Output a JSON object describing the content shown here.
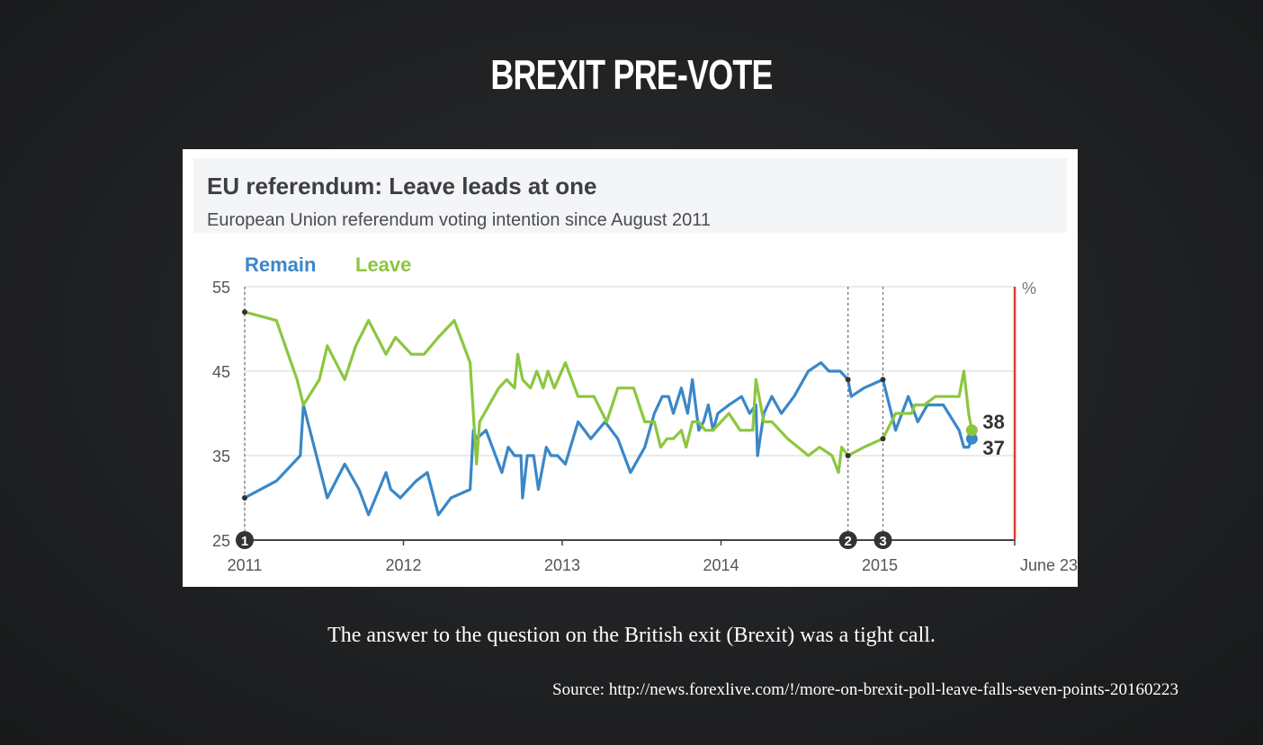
{
  "slide": {
    "title": "BREXIT PRE-VOTE",
    "caption": "The answer to the question on the British exit (Brexit) was a tight call.",
    "source": "Source: http://news.forexlive.com/!/more-on-brexit-poll-leave-falls-seven-points-20160223"
  },
  "chart_data": {
    "type": "line",
    "title": "EU referendum: Leave leads at one",
    "subtitle": "European Union referendum voting intention since August 2011",
    "unit_label": "%",
    "ylim": [
      25,
      55
    ],
    "yticks": [
      25,
      35,
      45,
      55
    ],
    "xlim": [
      2011.0,
      2015.85
    ],
    "xticks": [
      {
        "value": 2011.0,
        "label": "2011"
      },
      {
        "value": 2012.0,
        "label": "2012"
      },
      {
        "value": 2013.0,
        "label": "2013"
      },
      {
        "value": 2014.0,
        "label": "2014"
      },
      {
        "value": 2015.0,
        "label": "2015"
      },
      {
        "value": 2015.85,
        "label": "June 23"
      }
    ],
    "grid": true,
    "legend_position": "top-left",
    "colors": {
      "remain": "#3a87c8",
      "leave": "#8cc63f",
      "marker_line": "#e53935",
      "axis": "#444444"
    },
    "markers": [
      {
        "label": "1",
        "x": 2011.0
      },
      {
        "label": "2",
        "x": 2014.8
      },
      {
        "label": "3",
        "x": 2015.02
      }
    ],
    "series": [
      {
        "name": "Remain",
        "end_label": "37",
        "points": [
          [
            2011.0,
            30
          ],
          [
            2011.2,
            32
          ],
          [
            2011.35,
            35
          ],
          [
            2011.37,
            41
          ],
          [
            2011.52,
            30
          ],
          [
            2011.63,
            34
          ],
          [
            2011.72,
            31
          ],
          [
            2011.78,
            28
          ],
          [
            2011.89,
            33
          ],
          [
            2011.92,
            31
          ],
          [
            2011.98,
            30
          ],
          [
            2012.08,
            32
          ],
          [
            2012.15,
            33
          ],
          [
            2012.22,
            28
          ],
          [
            2012.3,
            30
          ],
          [
            2012.42,
            31
          ],
          [
            2012.44,
            38
          ],
          [
            2012.46,
            37
          ],
          [
            2012.52,
            38
          ],
          [
            2012.62,
            33
          ],
          [
            2012.66,
            36
          ],
          [
            2012.7,
            35
          ],
          [
            2012.74,
            35
          ],
          [
            2012.75,
            30
          ],
          [
            2012.78,
            35
          ],
          [
            2012.82,
            35
          ],
          [
            2012.85,
            31
          ],
          [
            2012.9,
            36
          ],
          [
            2012.93,
            35
          ],
          [
            2012.97,
            35
          ],
          [
            2013.02,
            34
          ],
          [
            2013.1,
            39
          ],
          [
            2013.18,
            37
          ],
          [
            2013.27,
            39
          ],
          [
            2013.35,
            37
          ],
          [
            2013.43,
            33
          ],
          [
            2013.52,
            36
          ],
          [
            2013.58,
            40
          ],
          [
            2013.63,
            42
          ],
          [
            2013.67,
            42
          ],
          [
            2013.7,
            40
          ],
          [
            2013.75,
            43
          ],
          [
            2013.79,
            40
          ],
          [
            2013.82,
            44
          ],
          [
            2013.86,
            38
          ],
          [
            2013.89,
            39
          ],
          [
            2013.92,
            41
          ],
          [
            2013.95,
            38
          ],
          [
            2013.98,
            40
          ],
          [
            2014.05,
            41
          ],
          [
            2014.13,
            42
          ],
          [
            2014.18,
            40
          ],
          [
            2014.22,
            41
          ],
          [
            2014.23,
            35
          ],
          [
            2014.27,
            40
          ],
          [
            2014.32,
            42
          ],
          [
            2014.38,
            40
          ],
          [
            2014.46,
            42
          ],
          [
            2014.55,
            45
          ],
          [
            2014.63,
            46
          ],
          [
            2014.68,
            45
          ],
          [
            2014.75,
            45
          ],
          [
            2014.8,
            44
          ],
          [
            2014.82,
            42
          ],
          [
            2014.9,
            43
          ],
          [
            2015.02,
            44
          ],
          [
            2015.1,
            38
          ],
          [
            2015.18,
            42
          ],
          [
            2015.24,
            39
          ],
          [
            2015.3,
            41
          ],
          [
            2015.4,
            41
          ],
          [
            2015.5,
            38
          ],
          [
            2015.53,
            36
          ],
          [
            2015.56,
            36
          ],
          [
            2015.58,
            37
          ]
        ]
      },
      {
        "name": "Leave",
        "end_label": "38",
        "points": [
          [
            2011.0,
            52
          ],
          [
            2011.2,
            51
          ],
          [
            2011.33,
            44
          ],
          [
            2011.37,
            41
          ],
          [
            2011.47,
            44
          ],
          [
            2011.52,
            48
          ],
          [
            2011.63,
            44
          ],
          [
            2011.7,
            48
          ],
          [
            2011.78,
            51
          ],
          [
            2011.89,
            47
          ],
          [
            2011.95,
            49
          ],
          [
            2012.05,
            47
          ],
          [
            2012.13,
            47
          ],
          [
            2012.22,
            49
          ],
          [
            2012.32,
            51
          ],
          [
            2012.42,
            46
          ],
          [
            2012.44,
            40
          ],
          [
            2012.46,
            34
          ],
          [
            2012.48,
            39
          ],
          [
            2012.6,
            43
          ],
          [
            2012.65,
            44
          ],
          [
            2012.7,
            43
          ],
          [
            2012.72,
            47
          ],
          [
            2012.75,
            44
          ],
          [
            2012.8,
            43
          ],
          [
            2012.84,
            45
          ],
          [
            2012.88,
            43
          ],
          [
            2012.91,
            45
          ],
          [
            2012.95,
            43
          ],
          [
            2013.02,
            46
          ],
          [
            2013.1,
            42
          ],
          [
            2013.2,
            42
          ],
          [
            2013.28,
            39
          ],
          [
            2013.35,
            43
          ],
          [
            2013.45,
            43
          ],
          [
            2013.52,
            39
          ],
          [
            2013.58,
            39
          ],
          [
            2013.62,
            36
          ],
          [
            2013.66,
            37
          ],
          [
            2013.7,
            37
          ],
          [
            2013.75,
            38
          ],
          [
            2013.78,
            36
          ],
          [
            2013.82,
            39
          ],
          [
            2013.86,
            39
          ],
          [
            2013.9,
            38
          ],
          [
            2013.95,
            38
          ],
          [
            2014.05,
            40
          ],
          [
            2014.12,
            38
          ],
          [
            2014.2,
            38
          ],
          [
            2014.22,
            44
          ],
          [
            2014.27,
            39
          ],
          [
            2014.32,
            39
          ],
          [
            2014.42,
            37
          ],
          [
            2014.55,
            35
          ],
          [
            2014.62,
            36
          ],
          [
            2014.7,
            35
          ],
          [
            2014.74,
            33
          ],
          [
            2014.76,
            36
          ],
          [
            2014.8,
            35
          ],
          [
            2014.9,
            36
          ],
          [
            2015.02,
            37
          ],
          [
            2015.1,
            40
          ],
          [
            2015.2,
            40
          ],
          [
            2015.22,
            41
          ],
          [
            2015.28,
            41
          ],
          [
            2015.35,
            42
          ],
          [
            2015.45,
            42
          ],
          [
            2015.5,
            42
          ],
          [
            2015.53,
            45
          ],
          [
            2015.56,
            40
          ],
          [
            2015.58,
            38
          ]
        ]
      }
    ]
  }
}
